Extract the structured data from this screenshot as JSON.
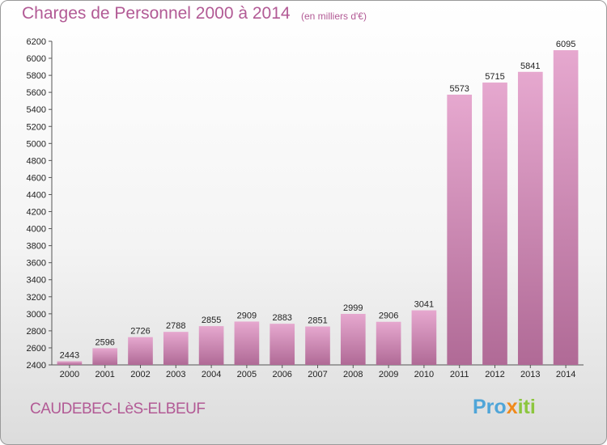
{
  "header": {
    "title": "Charges de Personnel 2000 à 2014",
    "subtitle": "(en milliers d'€)"
  },
  "footer": {
    "commune": "CAUDEBEC-LèS-ELBEUF",
    "logo_parts": [
      "Pro",
      "x",
      "iti"
    ]
  },
  "colors": {
    "title": "#b25a95",
    "bar_light": "#e6a8cf",
    "bar_dark": "#b06a96",
    "logo_blue": "#4fa5d8",
    "logo_orange": "#f08a1c",
    "logo_green": "#8cc63e"
  },
  "chart_data": {
    "type": "bar",
    "title": "Charges de Personnel 2000 à 2014",
    "subtitle": "(en milliers d'€)",
    "categories": [
      "2000",
      "2001",
      "2002",
      "2003",
      "2004",
      "2005",
      "2006",
      "2007",
      "2008",
      "2009",
      "2010",
      "2011",
      "2012",
      "2013",
      "2014"
    ],
    "values": [
      2443,
      2596,
      2726,
      2788,
      2855,
      2909,
      2883,
      2851,
      2999,
      2906,
      3041,
      5573,
      5715,
      5841,
      6095
    ],
    "ylim": [
      2400,
      6200
    ],
    "ytick_step": 200,
    "grid": false,
    "data_labels": true
  }
}
